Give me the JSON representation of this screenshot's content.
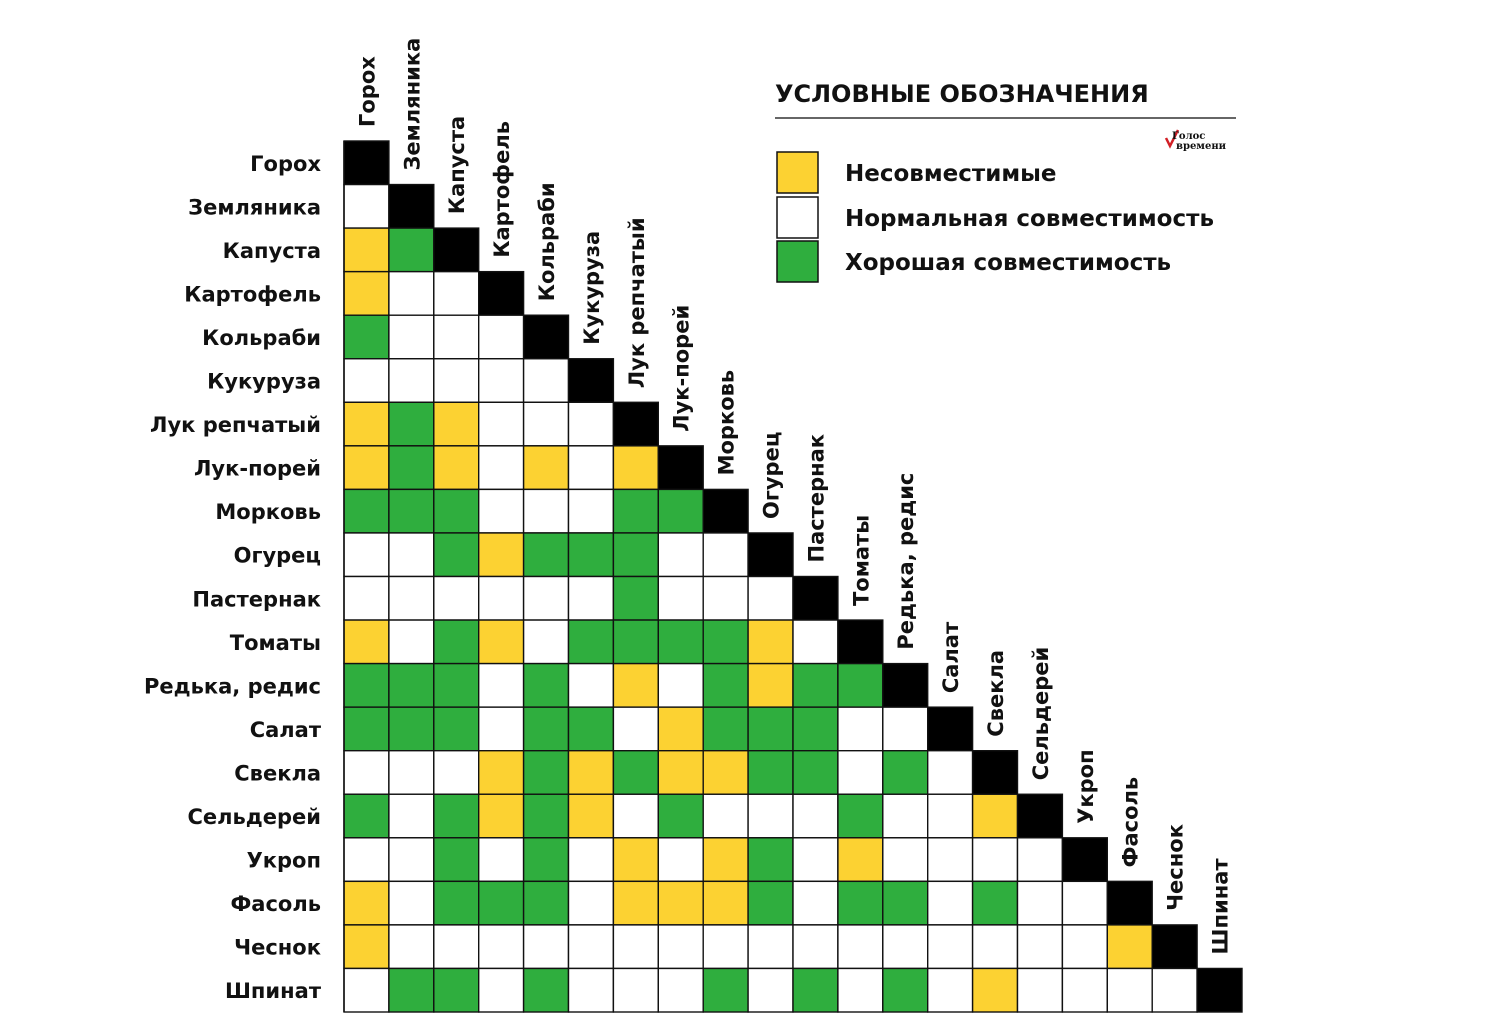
{
  "chart_data": {
    "type": "heatmap",
    "title": "УСЛОВНЫЕ ОБОЗНАЧЕНИЯ",
    "logo_text": "Голос времени",
    "plants": [
      "Горох",
      "Земляника",
      "Капуста",
      "Картофель",
      "Кольраби",
      "Кукуруза",
      "Лук репчатый",
      "Лук-порей",
      "Морковь",
      "Огурец",
      "Пастернак",
      "Томаты",
      "Редька, редис",
      "Салат",
      "Свекла",
      "Сельдерей",
      "Укроп",
      "Фасоль",
      "Чеснок",
      "Шпинат"
    ],
    "legend": [
      {
        "code": "Y",
        "label": "Несовместимые",
        "color": "#fcd232"
      },
      {
        "code": "W",
        "label": "Нормальная совместимость",
        "color": "#ffffff"
      },
      {
        "code": "G",
        "label": "Хорошая совместимость",
        "color": "#2fae3e"
      }
    ],
    "diagonal_color": "#000000",
    "matrix": [
      "D",
      "WD",
      "YGD",
      "YWWD",
      "GWWWD",
      "WWWWWD",
      "YGYWWWD",
      "YGYWYWYD",
      "GGGWWWGGD",
      "WWGYGGGWWD",
      "WWWWWWGWWWD",
      "YWGYWGGGGYWD",
      "GGGWGWYWGYGGD",
      "GGGWGGWYGGGWWD",
      "WWWYGYGYYGGWGWD",
      "GWGYGYWGWWWGWWYD",
      "WWGWGWYWYGWYWWWWD",
      "YWGGGWYYYGWGGWGWWD",
      "YWWWWWWWWWWWWWWWWYD",
      "WGGWGWWWGWGWGWYWWWWD"
    ]
  }
}
